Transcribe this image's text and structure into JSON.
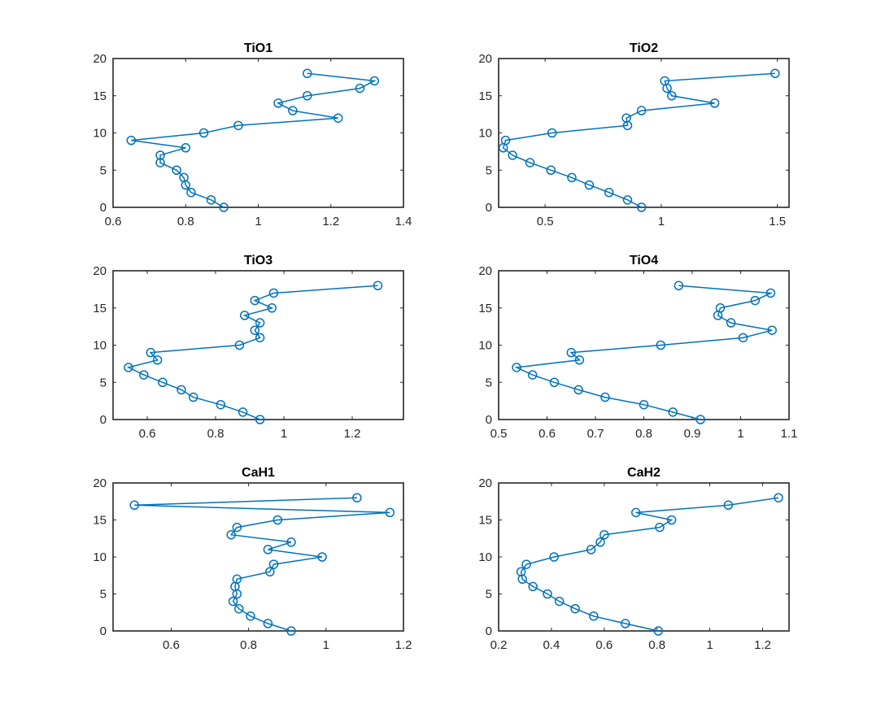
{
  "figure": {
    "background": "#ffffff",
    "line_color": "#0072BD"
  },
  "chart_data": [
    {
      "type": "line",
      "title": "TiO1",
      "xlabel": "",
      "ylabel": "",
      "xlim": [
        0.6,
        1.4
      ],
      "ylim": [
        0,
        20
      ],
      "xticks": [
        0.6,
        0.8,
        1,
        1.2,
        1.4
      ],
      "xtick_labels": [
        "0.6",
        "0.8",
        "1",
        "1.2",
        "1.4"
      ],
      "yticks": [
        0,
        5,
        10,
        15,
        20
      ],
      "ytick_labels": [
        "0",
        "5",
        "10",
        "15",
        "20"
      ],
      "series": [
        {
          "name": "TiO1",
          "marker": "circle",
          "x": [
            0.905,
            0.87,
            0.815,
            0.8,
            0.795,
            0.775,
            0.73,
            0.73,
            0.8,
            0.65,
            0.85,
            0.945,
            1.22,
            1.095,
            1.055,
            1.135,
            1.28,
            1.32,
            1.135
          ],
          "y": [
            0,
            1,
            2,
            3,
            4,
            5,
            6,
            7,
            8,
            9,
            10,
            11,
            12,
            13,
            14,
            15,
            16,
            17,
            18
          ]
        }
      ]
    },
    {
      "type": "line",
      "title": "TiO2",
      "xlabel": "",
      "ylabel": "",
      "xlim": [
        0.3,
        1.55
      ],
      "ylim": [
        0,
        20
      ],
      "xticks": [
        0.5,
        1,
        1.5
      ],
      "xtick_labels": [
        "0.5",
        "1",
        "1.5"
      ],
      "yticks": [
        0,
        5,
        10,
        15,
        20
      ],
      "ytick_labels": [
        "0",
        "5",
        "10",
        "15",
        "20"
      ],
      "series": [
        {
          "name": "TiO2",
          "marker": "circle",
          "x": [
            0.915,
            0.855,
            0.775,
            0.69,
            0.615,
            0.525,
            0.435,
            0.36,
            0.32,
            0.33,
            0.53,
            0.855,
            0.85,
            0.915,
            1.23,
            1.045,
            1.025,
            1.015,
            1.49
          ],
          "y": [
            0,
            1,
            2,
            3,
            4,
            5,
            6,
            7,
            8,
            9,
            10,
            11,
            12,
            13,
            14,
            15,
            16,
            17,
            18
          ]
        }
      ]
    },
    {
      "type": "line",
      "title": "TiO3",
      "xlabel": "",
      "ylabel": "",
      "xlim": [
        0.5,
        1.35
      ],
      "ylim": [
        0,
        20
      ],
      "xticks": [
        0.6,
        0.8,
        1,
        1.2
      ],
      "xtick_labels": [
        "0.6",
        "0.8",
        "1",
        "1.2"
      ],
      "yticks": [
        0,
        5,
        10,
        15,
        20
      ],
      "ytick_labels": [
        "0",
        "5",
        "10",
        "15",
        "20"
      ],
      "series": [
        {
          "name": "TiO3",
          "marker": "circle",
          "x": [
            0.93,
            0.88,
            0.815,
            0.735,
            0.7,
            0.645,
            0.59,
            0.545,
            0.63,
            0.61,
            0.87,
            0.93,
            0.915,
            0.93,
            0.885,
            0.965,
            0.915,
            0.97,
            1.275
          ],
          "y": [
            0,
            1,
            2,
            3,
            4,
            5,
            6,
            7,
            8,
            9,
            10,
            11,
            12,
            13,
            14,
            15,
            16,
            17,
            18
          ]
        }
      ]
    },
    {
      "type": "line",
      "title": "TiO4",
      "xlabel": "",
      "ylabel": "",
      "xlim": [
        0.5,
        1.1
      ],
      "ylim": [
        0,
        20
      ],
      "xticks": [
        0.5,
        0.6,
        0.7,
        0.8,
        0.9,
        1,
        1.1
      ],
      "xtick_labels": [
        "0.5",
        "0.6",
        "0.7",
        "0.8",
        "0.9",
        "1",
        "1.1"
      ],
      "yticks": [
        0,
        5,
        10,
        15,
        20
      ],
      "ytick_labels": [
        "0",
        "5",
        "10",
        "15",
        "20"
      ],
      "series": [
        {
          "name": "TiO4",
          "marker": "circle",
          "x": [
            0.917,
            0.86,
            0.8,
            0.72,
            0.665,
            0.615,
            0.57,
            0.537,
            0.667,
            0.65,
            0.835,
            1.005,
            1.065,
            0.98,
            0.953,
            0.958,
            1.03,
            1.062,
            0.872
          ],
          "y": [
            0,
            1,
            2,
            3,
            4,
            5,
            6,
            7,
            8,
            9,
            10,
            11,
            12,
            13,
            14,
            15,
            16,
            17,
            18
          ]
        }
      ]
    },
    {
      "type": "line",
      "title": "CaH1",
      "xlabel": "",
      "ylabel": "",
      "xlim": [
        0.45,
        1.2
      ],
      "ylim": [
        0,
        20
      ],
      "xticks": [
        0.6,
        0.8,
        1,
        1.2
      ],
      "xtick_labels": [
        "0.6",
        "0.8",
        "1",
        "1.2"
      ],
      "yticks": [
        0,
        5,
        10,
        15,
        20
      ],
      "ytick_labels": [
        "0",
        "5",
        "10",
        "15",
        "20"
      ],
      "series": [
        {
          "name": "CaH1",
          "marker": "circle",
          "x": [
            0.91,
            0.85,
            0.805,
            0.775,
            0.76,
            0.77,
            0.765,
            0.77,
            0.855,
            0.865,
            0.99,
            0.85,
            0.91,
            0.755,
            0.77,
            0.875,
            1.165,
            0.505,
            1.08
          ],
          "y": [
            0,
            1,
            2,
            3,
            4,
            5,
            6,
            7,
            8,
            9,
            10,
            11,
            12,
            13,
            14,
            15,
            16,
            17,
            18
          ]
        }
      ]
    },
    {
      "type": "line",
      "title": "CaH2",
      "xlabel": "",
      "ylabel": "",
      "xlim": [
        0.2,
        1.3
      ],
      "ylim": [
        0,
        20
      ],
      "xticks": [
        0.2,
        0.4,
        0.6,
        0.8,
        1,
        1.2
      ],
      "xtick_labels": [
        "0.2",
        "0.4",
        "0.6",
        "0.8",
        "1",
        "1.2"
      ],
      "yticks": [
        0,
        5,
        10,
        15,
        20
      ],
      "ytick_labels": [
        "0",
        "5",
        "10",
        "15",
        "20"
      ],
      "series": [
        {
          "name": "CaH2",
          "marker": "circle",
          "x": [
            0.805,
            0.68,
            0.56,
            0.49,
            0.43,
            0.385,
            0.33,
            0.29,
            0.285,
            0.305,
            0.41,
            0.55,
            0.585,
            0.6,
            0.81,
            0.855,
            0.72,
            1.07,
            1.26
          ],
          "y": [
            0,
            1,
            2,
            3,
            4,
            5,
            6,
            7,
            8,
            9,
            10,
            11,
            12,
            13,
            14,
            15,
            16,
            17,
            18
          ]
        }
      ]
    }
  ]
}
